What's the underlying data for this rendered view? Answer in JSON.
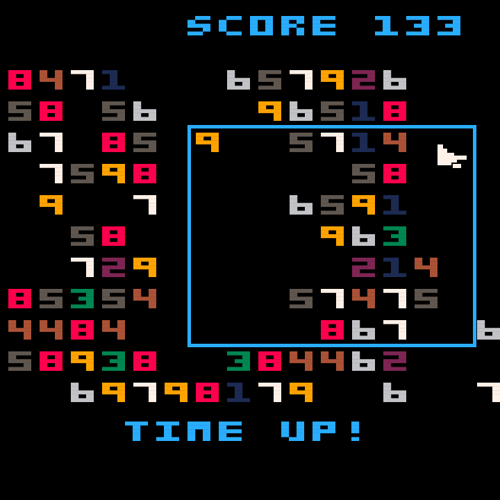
{
  "hud": {
    "score_label": "SCORE",
    "score_value": "133",
    "status_message": "TIME UP!"
  },
  "colors": {
    "text_accent": "#29adff",
    "selection_box": "#29adff",
    "cursor": "#fff1e8",
    "background": "#000000",
    "digits": {
      "1": "#1d2b53",
      "2": "#7e2553",
      "3": "#008751",
      "4": "#ab5236",
      "5": "#5f574f",
      "6": "#c2c3c7",
      "7": "#fff1e8",
      "8": "#ff004d",
      "9": "#ffa300"
    }
  },
  "board": {
    "rows": [
      "8471   657926   ",
      "58 56   96518   ",
      "67 85 9  5714   ",
      " 7598      58   ",
      " 9  7    6591   ",
      "  58      963   ",
      "  729      214  ",
      "85354    57475  ",
      "4484      867  6",
      "58938  384462   ",
      "  69798179  6  7"
    ]
  },
  "icons": {
    "cursor": "pointer-hand-icon"
  }
}
